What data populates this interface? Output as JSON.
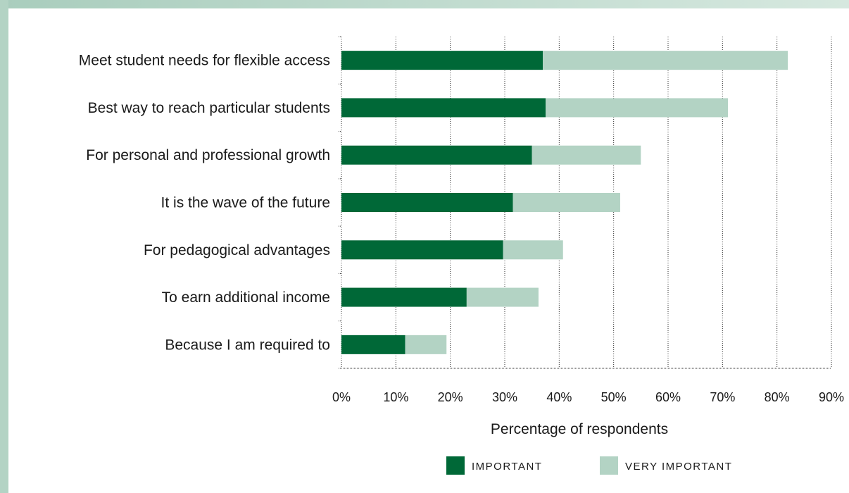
{
  "chart_data": {
    "type": "bar",
    "orientation": "horizontal",
    "stacked": true,
    "categories": [
      "Meet student needs for flexible access",
      "Best way to reach particular students",
      "For personal and professional growth",
      "It is the wave of the future",
      "For pedagogical advantages",
      "To earn additional income",
      "Because I am required to"
    ],
    "series": [
      {
        "name": "IMPORTANT",
        "color": "#006837",
        "values": [
          37,
          37.5,
          35,
          31.5,
          29.7,
          23,
          11.7
        ]
      },
      {
        "name": "VERY IMPORTANT",
        "color": "#b3d3c4",
        "values": [
          45,
          33.5,
          20,
          19.7,
          11,
          13.2,
          7.6
        ]
      }
    ],
    "xlabel": "Percentage of respondents",
    "xlim": [
      0,
      90
    ],
    "x_ticks": [
      "0%",
      "10%",
      "20%",
      "30%",
      "40%",
      "50%",
      "60%",
      "70%",
      "80%",
      "90%"
    ],
    "grid": "vertical dotted",
    "legend_position": "bottom"
  }
}
